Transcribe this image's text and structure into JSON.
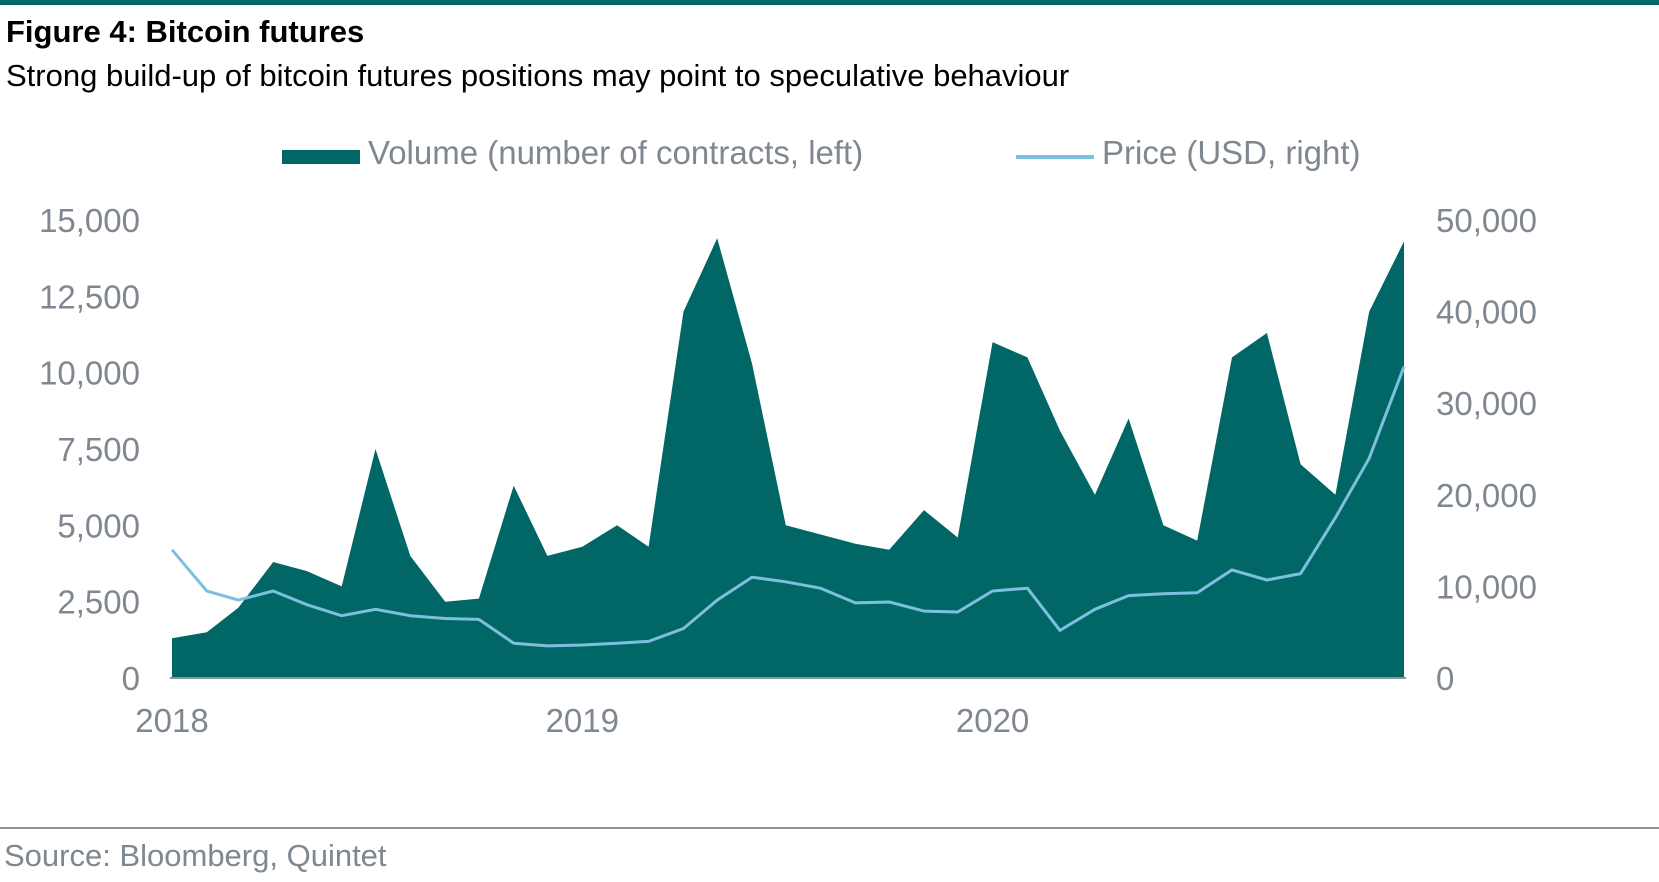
{
  "header": {
    "title": "Figure 4: Bitcoin futures",
    "subtitle": "Strong build-up of bitcoin futures positions may point to speculative behaviour"
  },
  "footer": {
    "source": "Source: Bloomberg, Quintet"
  },
  "colors": {
    "accent": "#006766",
    "volume": "#006766",
    "price": "#7dbfde",
    "axis_text": "#7f8790"
  },
  "chart_data": {
    "type": "area",
    "legend_position": "top",
    "grid": false,
    "x": [
      "2018-01-01",
      "2018-02-01",
      "2018-03-01",
      "2018-04-01",
      "2018-05-01",
      "2018-06-01",
      "2018-07-01",
      "2018-08-01",
      "2018-09-01",
      "2018-10-01",
      "2018-11-01",
      "2018-12-01",
      "2019-01-01",
      "2019-02-01",
      "2019-03-01",
      "2019-04-01",
      "2019-05-01",
      "2019-06-01",
      "2019-07-01",
      "2019-08-01",
      "2019-09-01",
      "2019-10-01",
      "2019-11-01",
      "2019-12-01",
      "2020-01-01",
      "2020-02-01",
      "2020-03-01",
      "2020-04-01",
      "2020-05-01",
      "2020-06-01",
      "2020-07-01",
      "2020-08-01",
      "2020-09-01",
      "2020-10-01",
      "2020-11-01",
      "2020-12-01",
      "2021-01-01"
    ],
    "x_ticks": [
      "2018",
      "2019",
      "2020"
    ],
    "x_tick_positions": [
      "2018-01-01",
      "2019-01-01",
      "2020-01-01"
    ],
    "series": [
      {
        "name": "Volume (number of contracts, left)",
        "axis": "left",
        "type": "area",
        "values": [
          1300,
          1500,
          2300,
          3800,
          3500,
          3000,
          7500,
          4000,
          2500,
          2600,
          6300,
          4000,
          4300,
          5000,
          4300,
          12000,
          14400,
          10300,
          5000,
          4700,
          4400,
          4200,
          5500,
          4600,
          11000,
          10500,
          8100,
          6000,
          8500,
          5000,
          4500,
          10500,
          11300,
          7000,
          6000,
          12000,
          14300
        ]
      },
      {
        "name": "Price (USD, right)",
        "axis": "right",
        "type": "line",
        "values": [
          14000,
          9500,
          8500,
          9500,
          8000,
          6800,
          7500,
          6800,
          6500,
          6400,
          3800,
          3500,
          3600,
          3800,
          4000,
          5400,
          8500,
          11000,
          10500,
          9800,
          8200,
          8300,
          7300,
          7200,
          9500,
          9800,
          5200,
          7500,
          9000,
          9200,
          9300,
          11800,
          10700,
          11400,
          17500,
          24000,
          34000
        ]
      }
    ],
    "ylim_left": [
      0,
      15000
    ],
    "ylim_right": [
      0,
      50000
    ],
    "yticks_left": [
      "0",
      "2,500",
      "5,000",
      "7,500",
      "10,000",
      "12,500",
      "15,000"
    ],
    "yticks_right": [
      "0",
      "10,000",
      "20,000",
      "30,000",
      "40,000",
      "50,000"
    ]
  }
}
